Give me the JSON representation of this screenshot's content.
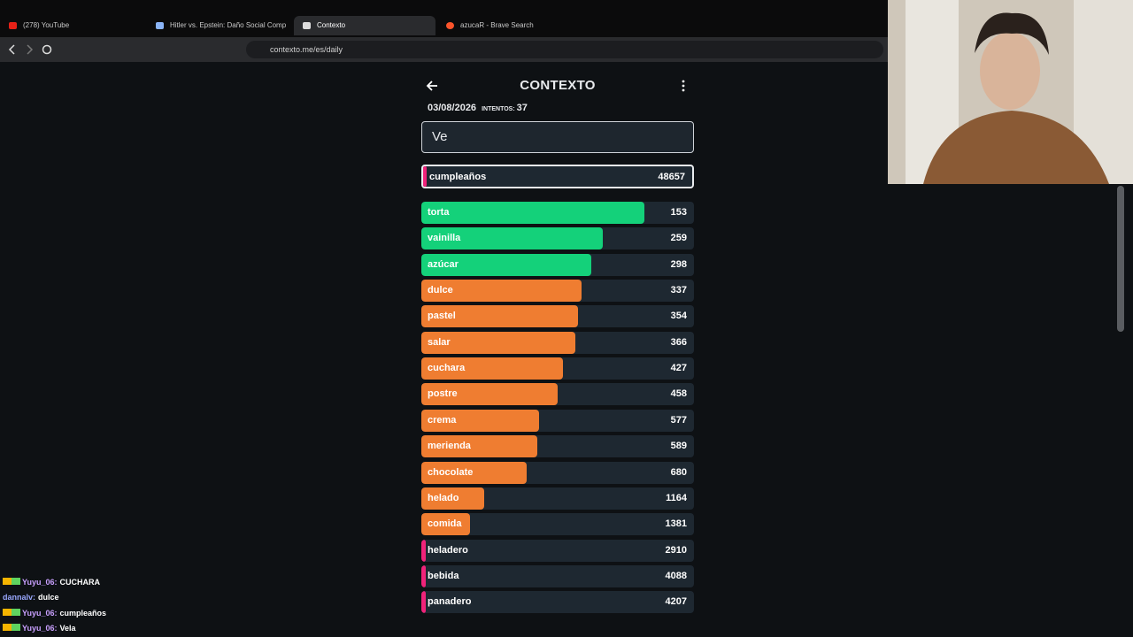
{
  "browser": {
    "tabs": [
      "(278) YouTube",
      "Hitler vs. Epstein: Daño Social Comp",
      "Contexto",
      "azucaR - Brave Search"
    ],
    "url": "contexto.me/es/daily"
  },
  "game": {
    "title": "CONTEXTO",
    "date": "03/08/2026",
    "attempts_label": "INTENTOS:",
    "attempts": 37,
    "input": "Ve",
    "last_guess": {
      "word": "cumpleaños",
      "rank": 48657
    },
    "guesses": [
      {
        "word": "torta",
        "rank": 153
      },
      {
        "word": "vainilla",
        "rank": 259
      },
      {
        "word": "azúcar",
        "rank": 298
      },
      {
        "word": "dulce",
        "rank": 337
      },
      {
        "word": "pastel",
        "rank": 354
      },
      {
        "word": "salar",
        "rank": 366
      },
      {
        "word": "cuchara",
        "rank": 427
      },
      {
        "word": "postre",
        "rank": 458
      },
      {
        "word": "crema",
        "rank": 577
      },
      {
        "word": "merienda",
        "rank": 589
      },
      {
        "word": "chocolate",
        "rank": 680
      },
      {
        "word": "helado",
        "rank": 1164
      },
      {
        "word": "comida",
        "rank": 1381
      },
      {
        "word": "heladero",
        "rank": 2910
      },
      {
        "word": "bebida",
        "rank": 4088
      },
      {
        "word": "panadero",
        "rank": 4207
      }
    ]
  },
  "chat": [
    {
      "user": "Yuyu_06:",
      "text": "CUCHARA"
    },
    {
      "user": "dannalv:",
      "text": "dulce"
    },
    {
      "user": "Yuyu_06:",
      "text": "cumpleaños"
    },
    {
      "user": "Yuyu_06:",
      "text": "Vela"
    }
  ]
}
